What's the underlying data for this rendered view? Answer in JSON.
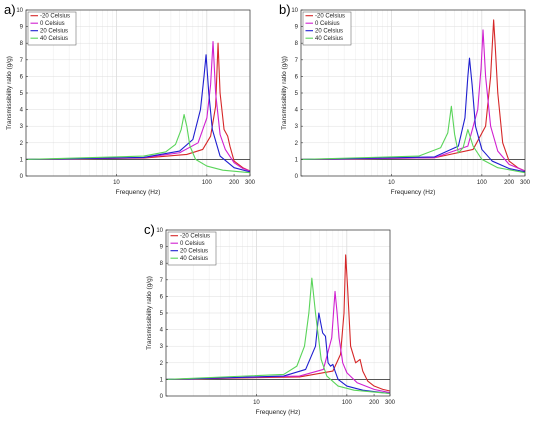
{
  "chart_data": [
    {
      "type": "line",
      "panel_label": "a)",
      "xlabel": "Frequency (Hz)",
      "ylabel": "Transmissibility ratio (g/g)",
      "xscale": "log",
      "xlim": [
        1,
        300
      ],
      "ylim": [
        0,
        10
      ],
      "x_tick_labels": [
        "10",
        "100",
        "200",
        "300"
      ],
      "y_ticks": [
        0,
        1,
        2,
        3,
        4,
        5,
        6,
        7,
        8,
        9,
        10
      ],
      "grid": true,
      "reference_line": 1,
      "legend_position": "top-left",
      "series": [
        {
          "name": "-20 Celsius",
          "color": "#d62728",
          "x": [
            1,
            20,
            60,
            90,
            110,
            125,
            133,
            140,
            155,
            170,
            180,
            200,
            250,
            300
          ],
          "y": [
            1.0,
            1.08,
            1.3,
            1.6,
            2.4,
            4.2,
            8.0,
            5.0,
            2.8,
            2.4,
            1.8,
            0.9,
            0.5,
            0.3
          ]
        },
        {
          "name": "0 Celsius",
          "color": "#d020d0",
          "x": [
            1,
            20,
            50,
            80,
            100,
            110,
            117,
            125,
            140,
            160,
            200,
            250,
            300
          ],
          "y": [
            1.0,
            1.1,
            1.4,
            2.0,
            3.5,
            5.5,
            8.1,
            5.0,
            2.5,
            1.6,
            0.8,
            0.45,
            0.3
          ]
        },
        {
          "name": "20 Celsius",
          "color": "#1f1fd0",
          "x": [
            1,
            20,
            50,
            70,
            85,
            93,
            98,
            105,
            115,
            140,
            200,
            300
          ],
          "y": [
            1.0,
            1.12,
            1.5,
            2.2,
            4.0,
            6.0,
            7.3,
            5.0,
            2.8,
            1.2,
            0.5,
            0.25
          ]
        },
        {
          "name": "40 Celsius",
          "color": "#5ad45a",
          "x": [
            1,
            20,
            35,
            45,
            52,
            56,
            60,
            65,
            75,
            100,
            150,
            300
          ],
          "y": [
            1.0,
            1.2,
            1.45,
            1.9,
            2.8,
            3.7,
            3.0,
            1.8,
            1.0,
            0.6,
            0.35,
            0.2
          ]
        }
      ]
    },
    {
      "type": "line",
      "panel_label": "b)",
      "xlabel": "Frequency (Hz)",
      "ylabel": "Transmissibility ratio (g/g)",
      "xscale": "log",
      "xlim": [
        1,
        300
      ],
      "ylim": [
        0,
        10
      ],
      "x_tick_labels": [
        "10",
        "100",
        "200",
        "300"
      ],
      "y_ticks": [
        0,
        1,
        2,
        3,
        4,
        5,
        6,
        7,
        8,
        9,
        10
      ],
      "grid": true,
      "reference_line": 1,
      "legend_position": "top-left",
      "series": [
        {
          "name": "-20 Celsius",
          "color": "#d62728",
          "x": [
            1,
            30,
            80,
            110,
            125,
            135,
            140,
            150,
            170,
            200,
            250,
            300
          ],
          "y": [
            1.0,
            1.1,
            1.6,
            3.0,
            6.0,
            9.4,
            8.0,
            5.0,
            2.0,
            0.9,
            0.5,
            0.3
          ]
        },
        {
          "name": "0 Celsius",
          "color": "#d020d0",
          "x": [
            1,
            30,
            70,
            90,
            98,
            103,
            110,
            125,
            150,
            200,
            300
          ],
          "y": [
            1.0,
            1.1,
            1.8,
            4.0,
            6.5,
            8.8,
            6.0,
            3.0,
            1.5,
            0.7,
            0.3
          ]
        },
        {
          "name": "20 Celsius",
          "color": "#1f1fd0",
          "x": [
            1,
            30,
            55,
            65,
            70,
            73,
            78,
            85,
            100,
            130,
            200,
            300
          ],
          "y": [
            1.0,
            1.15,
            1.8,
            3.5,
            6.0,
            7.1,
            5.5,
            3.0,
            1.6,
            0.9,
            0.45,
            0.25
          ]
        },
        {
          "name": "40 Celsius",
          "color": "#5ad45a",
          "x": [
            1,
            20,
            35,
            42,
            46,
            50,
            55,
            62,
            70,
            80,
            100,
            150,
            300
          ],
          "y": [
            1.0,
            1.2,
            1.7,
            2.6,
            4.2,
            2.5,
            1.4,
            1.7,
            2.8,
            1.8,
            1.0,
            0.5,
            0.2
          ]
        }
      ]
    },
    {
      "type": "line",
      "panel_label": "c)",
      "xlabel": "Frequency (Hz)",
      "ylabel": "Transmissibility ratio (g/g)",
      "xscale": "log",
      "xlim": [
        1,
        300
      ],
      "ylim": [
        0,
        10
      ],
      "x_tick_labels": [
        "10",
        "100",
        "200",
        "300"
      ],
      "y_ticks": [
        0,
        1,
        2,
        3,
        4,
        5,
        6,
        7,
        8,
        9,
        10
      ],
      "grid": true,
      "reference_line": 1,
      "legend_position": "top-left",
      "series": [
        {
          "name": "-20 Celsius",
          "color": "#d62728",
          "x": [
            1,
            30,
            70,
            85,
            93,
            97,
            102,
            110,
            125,
            140,
            150,
            170,
            200,
            250,
            300
          ],
          "y": [
            1.0,
            1.15,
            1.5,
            2.5,
            5.0,
            8.5,
            6.5,
            3.0,
            2.0,
            2.2,
            1.5,
            0.9,
            0.6,
            0.4,
            0.3
          ]
        },
        {
          "name": "0 Celsius",
          "color": "#d020d0",
          "x": [
            1,
            30,
            55,
            68,
            74,
            78,
            82,
            90,
            100,
            130,
            200,
            300
          ],
          "y": [
            1.0,
            1.2,
            1.6,
            3.5,
            6.3,
            5.0,
            3.5,
            2.0,
            1.4,
            0.8,
            0.4,
            0.2
          ]
        },
        {
          "name": "20 Celsius",
          "color": "#1f1fd0",
          "x": [
            1,
            20,
            35,
            45,
            49,
            51,
            54,
            58,
            62,
            66,
            70,
            74,
            80,
            100,
            150,
            300
          ],
          "y": [
            1.0,
            1.2,
            1.6,
            3.0,
            5.0,
            4.5,
            3.8,
            3.6,
            2.0,
            1.8,
            1.9,
            1.5,
            1.0,
            0.6,
            0.35,
            0.15
          ]
        },
        {
          "name": "40 Celsius",
          "color": "#5ad45a",
          "x": [
            1,
            20,
            28,
            34,
            38,
            41,
            45,
            52,
            60,
            80,
            120,
            300
          ],
          "y": [
            1.0,
            1.3,
            1.8,
            3.0,
            5.0,
            7.1,
            5.0,
            2.2,
            1.2,
            0.6,
            0.35,
            0.15
          ]
        }
      ]
    }
  ]
}
